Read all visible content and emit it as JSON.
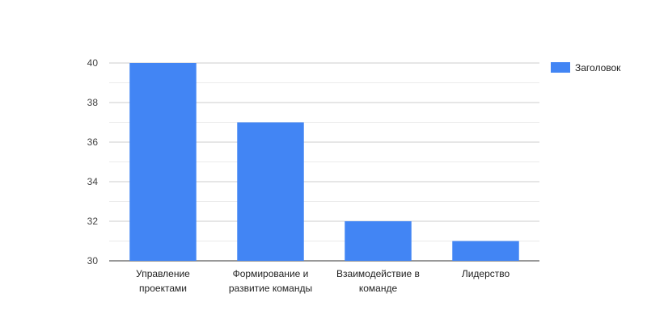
{
  "chart_data": {
    "type": "bar",
    "categories": [
      [
        "Управление",
        "проектами"
      ],
      [
        "Формирование и",
        "развитие команды"
      ],
      [
        "Взаимодействие в",
        "команде"
      ],
      [
        "Лидерство"
      ]
    ],
    "series": [
      {
        "name": "Заголовок",
        "values": [
          40,
          37,
          32,
          31
        ],
        "color": "#4285f4"
      }
    ],
    "yticks": [
      30,
      32,
      34,
      36,
      38,
      40
    ],
    "ylim": [
      30,
      40
    ],
    "grid": true,
    "minor_grid": true,
    "legend": "right",
    "title": "",
    "xlabel": "",
    "ylabel": ""
  }
}
